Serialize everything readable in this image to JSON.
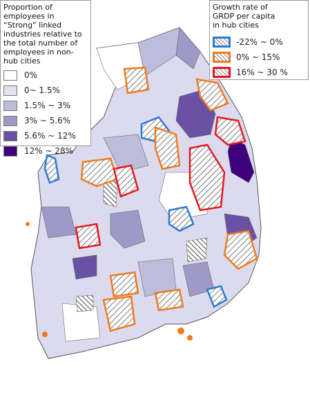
{
  "legend_left": {
    "title": "Proportion of employees in “Strong” linked industries relative to the total number of employees in non-hub cities",
    "items": [
      "0%",
      "0~ 1.5%",
      "1.5% ~ 3%",
      "3% ~ 5.6%",
      "5.6% ~ 12%",
      "12% ~ 28%"
    ]
  },
  "legend_right": {
    "title": "Growth rate of GRDP per capita in hub cities",
    "items": [
      "-22% ~ 0%",
      "0% ~ 15%",
      "16% ~ 30 %"
    ]
  }
}
